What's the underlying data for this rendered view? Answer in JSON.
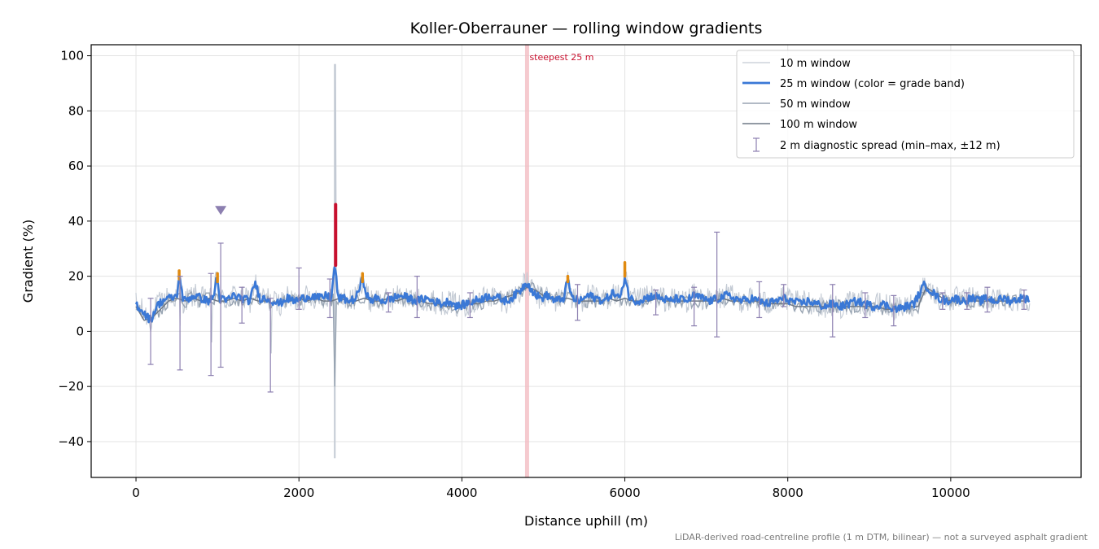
{
  "chart_data": {
    "type": "line",
    "title": "Koller-Oberrauner — rolling window gradients",
    "xlabel": "Distance uphill (m)",
    "ylabel": "Gradient (%)",
    "xlim": [
      -550,
      11600
    ],
    "ylim": [
      -53,
      104
    ],
    "xticks": [
      0,
      2000,
      4000,
      6000,
      8000,
      10000
    ],
    "yticks": [
      -40,
      -20,
      0,
      20,
      40,
      60,
      80,
      100
    ],
    "xtick_labels": [
      "0",
      "2000",
      "4000",
      "6000",
      "8000",
      "10000"
    ],
    "ytick_labels": [
      "−40",
      "−20",
      "0",
      "20",
      "40",
      "60",
      "80",
      "100"
    ],
    "grid": true,
    "legend_position": "top-right",
    "colors": {
      "w10": "#c3cad4",
      "w25": "#3a78d6",
      "w50": "#98a4b2",
      "w100": "#6e7886",
      "spread": "#8c7fb0",
      "band_orange": "#e08a10",
      "band_red": "#c8102e",
      "steepest_band": "#f2b8bf"
    },
    "legend": [
      {
        "key": "w10",
        "label": "10 m window"
      },
      {
        "key": "w25",
        "label": "25 m window (color = grade band)"
      },
      {
        "key": "w50",
        "label": "50 m window"
      },
      {
        "key": "w100",
        "label": "100 m window"
      },
      {
        "key": "spread",
        "label": "2 m diagnostic spread (min–max, ±12 m)"
      }
    ],
    "series": [
      {
        "key": "w25",
        "x": [
          0,
          60,
          120,
          180,
          250,
          320,
          380,
          440,
          500,
          540,
          580,
          650,
          720,
          800,
          880,
          950,
          990,
          1030,
          1100,
          1200,
          1300,
          1400,
          1460,
          1520,
          1600,
          1680,
          1760,
          1850,
          1950,
          2050,
          2150,
          2250,
          2350,
          2400,
          2440,
          2480,
          2540,
          2620,
          2700,
          2780,
          2860,
          2950,
          3050,
          3150,
          3250,
          3350,
          3450,
          3550,
          3650,
          3750,
          3850,
          3950,
          4050,
          4150,
          4250,
          4350,
          4450,
          4550,
          4650,
          4720,
          4800,
          4880,
          4960,
          5050,
          5150,
          5250,
          5300,
          5350,
          5450,
          5550,
          5650,
          5750,
          5850,
          5950,
          6000,
          6060,
          6150,
          6250,
          6350,
          6450,
          6550,
          6650,
          6750,
          6850,
          6950,
          7050,
          7150,
          7250,
          7350,
          7450,
          7550,
          7650,
          7750,
          7850,
          7950,
          8050,
          8150,
          8250,
          8350,
          8450,
          8550,
          8650,
          8750,
          8850,
          8950,
          9050,
          9150,
          9250,
          9350,
          9450,
          9550,
          9620,
          9680,
          9750,
          9850,
          9950,
          10050,
          10150,
          10250,
          10350,
          10450,
          10550,
          10650,
          10750,
          10850,
          10950
        ],
        "y": [
          10,
          8,
          6,
          4,
          9,
          11,
          12,
          12,
          13,
          20,
          11,
          12,
          13,
          12,
          11,
          12,
          20,
          12,
          11,
          13,
          12,
          11,
          18,
          12,
          12,
          11,
          10,
          12,
          11,
          12,
          13,
          12,
          13,
          12,
          25,
          12,
          12,
          11,
          12,
          19,
          11,
          12,
          11,
          12,
          13,
          12,
          11,
          12,
          11,
          10,
          11,
          9,
          10,
          11,
          12,
          13,
          12,
          11,
          13,
          15,
          18,
          14,
          12,
          13,
          11,
          12,
          19,
          12,
          11,
          13,
          12,
          11,
          14,
          12,
          20,
          12,
          11,
          12,
          13,
          12,
          11,
          12,
          11,
          13,
          12,
          11,
          12,
          13,
          12,
          11,
          12,
          11,
          10,
          11,
          12,
          11,
          10,
          11,
          10,
          9,
          10,
          9,
          10,
          11,
          10,
          9,
          10,
          9,
          8,
          9,
          10,
          14,
          17,
          15,
          12,
          11,
          12,
          11,
          12,
          11,
          12,
          11,
          12,
          11,
          12,
          12
        ]
      },
      {
        "key": "w100",
        "x": [
          0,
          100,
          200,
          300,
          400,
          500,
          600,
          700,
          800,
          900,
          1000,
          1100,
          1200,
          1300,
          1400,
          1500,
          1600,
          1700,
          1800,
          1900,
          2000,
          2100,
          2200,
          2300,
          2400,
          2500,
          2600,
          2700,
          2800,
          2900,
          3000,
          3100,
          3200,
          3300,
          3400,
          3500,
          3600,
          3700,
          3800,
          3900,
          4000,
          4100,
          4200,
          4300,
          4400,
          4500,
          4600,
          4700,
          4800,
          4900,
          5000,
          5100,
          5200,
          5300,
          5400,
          5500,
          5600,
          5700,
          5800,
          5900,
          6000,
          6100,
          6200,
          6300,
          6400,
          6500,
          6600,
          6700,
          6800,
          6900,
          7000,
          7100,
          7200,
          7300,
          7400,
          7500,
          7600,
          7700,
          7800,
          7900,
          8000,
          8100,
          8200,
          8300,
          8400,
          8500,
          8600,
          8700,
          8800,
          8900,
          9000,
          9100,
          9200,
          9300,
          9400,
          9500,
          9600,
          9700,
          9800,
          9900,
          10000,
          10100,
          10200,
          10300,
          10400,
          10500,
          10600,
          10700,
          10800,
          10900,
          10970
        ],
        "y": [
          9,
          4,
          5,
          8,
          11,
          12,
          11,
          12,
          11,
          12,
          11,
          11,
          12,
          11,
          12,
          11,
          11,
          10,
          11,
          11,
          12,
          11,
          12,
          11,
          11,
          12,
          11,
          11,
          12,
          11,
          11,
          12,
          11,
          12,
          11,
          11,
          10,
          10,
          9,
          9,
          9,
          10,
          10,
          11,
          11,
          12,
          13,
          14,
          16,
          15,
          13,
          12,
          12,
          12,
          11,
          11,
          11,
          11,
          12,
          11,
          12,
          11,
          11,
          11,
          12,
          11,
          11,
          11,
          11,
          11,
          11,
          11,
          12,
          11,
          11,
          11,
          11,
          10,
          10,
          10,
          10,
          9,
          9,
          9,
          9,
          9,
          9,
          9,
          9,
          9,
          9,
          9,
          8,
          8,
          9,
          9,
          9,
          16,
          14,
          12,
          11,
          11,
          11,
          11,
          11,
          11,
          11,
          11,
          11,
          11,
          11
        ]
      }
    ],
    "grade_band_highlights": [
      {
        "band": "red",
        "x": 2450,
        "y_range": [
          24,
          46
        ]
      },
      {
        "band": "orange",
        "x": 530,
        "y_range": [
          19,
          22
        ]
      },
      {
        "band": "orange",
        "x": 1000,
        "y_range": [
          18,
          21
        ]
      },
      {
        "band": "orange",
        "x": 2780,
        "y_range": [
          18,
          21
        ]
      },
      {
        "band": "orange",
        "x": 5300,
        "y_range": [
          18,
          20
        ]
      },
      {
        "band": "orange",
        "x": 6000,
        "y_range": [
          20,
          25
        ]
      }
    ],
    "spread_bars": [
      {
        "x": 180,
        "low": -12,
        "high": 12
      },
      {
        "x": 540,
        "low": -14,
        "high": 20
      },
      {
        "x": 920,
        "low": -16,
        "high": 21
      },
      {
        "x": 1040,
        "low": -13,
        "high": 32
      },
      {
        "x": 1300,
        "low": 3,
        "high": 16
      },
      {
        "x": 1650,
        "low": -22,
        "high": 12
      },
      {
        "x": 2000,
        "low": 8,
        "high": 23
      },
      {
        "x": 2380,
        "low": 5,
        "high": 19
      },
      {
        "x": 3100,
        "low": 7,
        "high": 14
      },
      {
        "x": 3450,
        "low": 5,
        "high": 20
      },
      {
        "x": 4100,
        "low": 5,
        "high": 14
      },
      {
        "x": 5420,
        "low": 4,
        "high": 17
      },
      {
        "x": 6380,
        "low": 6,
        "high": 15
      },
      {
        "x": 6850,
        "low": 2,
        "high": 16
      },
      {
        "x": 7130,
        "low": -2,
        "high": 36
      },
      {
        "x": 7650,
        "low": 5,
        "high": 18
      },
      {
        "x": 7950,
        "low": 9,
        "high": 17
      },
      {
        "x": 8550,
        "low": -2,
        "high": 17
      },
      {
        "x": 8950,
        "low": 5,
        "high": 14
      },
      {
        "x": 9300,
        "low": 2,
        "high": 13
      },
      {
        "x": 9900,
        "low": 8,
        "high": 14
      },
      {
        "x": 10200,
        "low": 8,
        "high": 14
      },
      {
        "x": 10450,
        "low": 7,
        "high": 16
      },
      {
        "x": 10900,
        "low": 8,
        "high": 15
      }
    ],
    "spread_marker": {
      "x": 1040,
      "y": 44
    },
    "spike_extent": {
      "x": 2440,
      "low": -46,
      "high": 97
    },
    "steepest_marker": {
      "x": 4800,
      "label": "steepest 25 m"
    },
    "footnote": "LiDAR-derived road-centreline profile (1 m DTM, bilinear) — not a surveyed asphalt gradient"
  }
}
